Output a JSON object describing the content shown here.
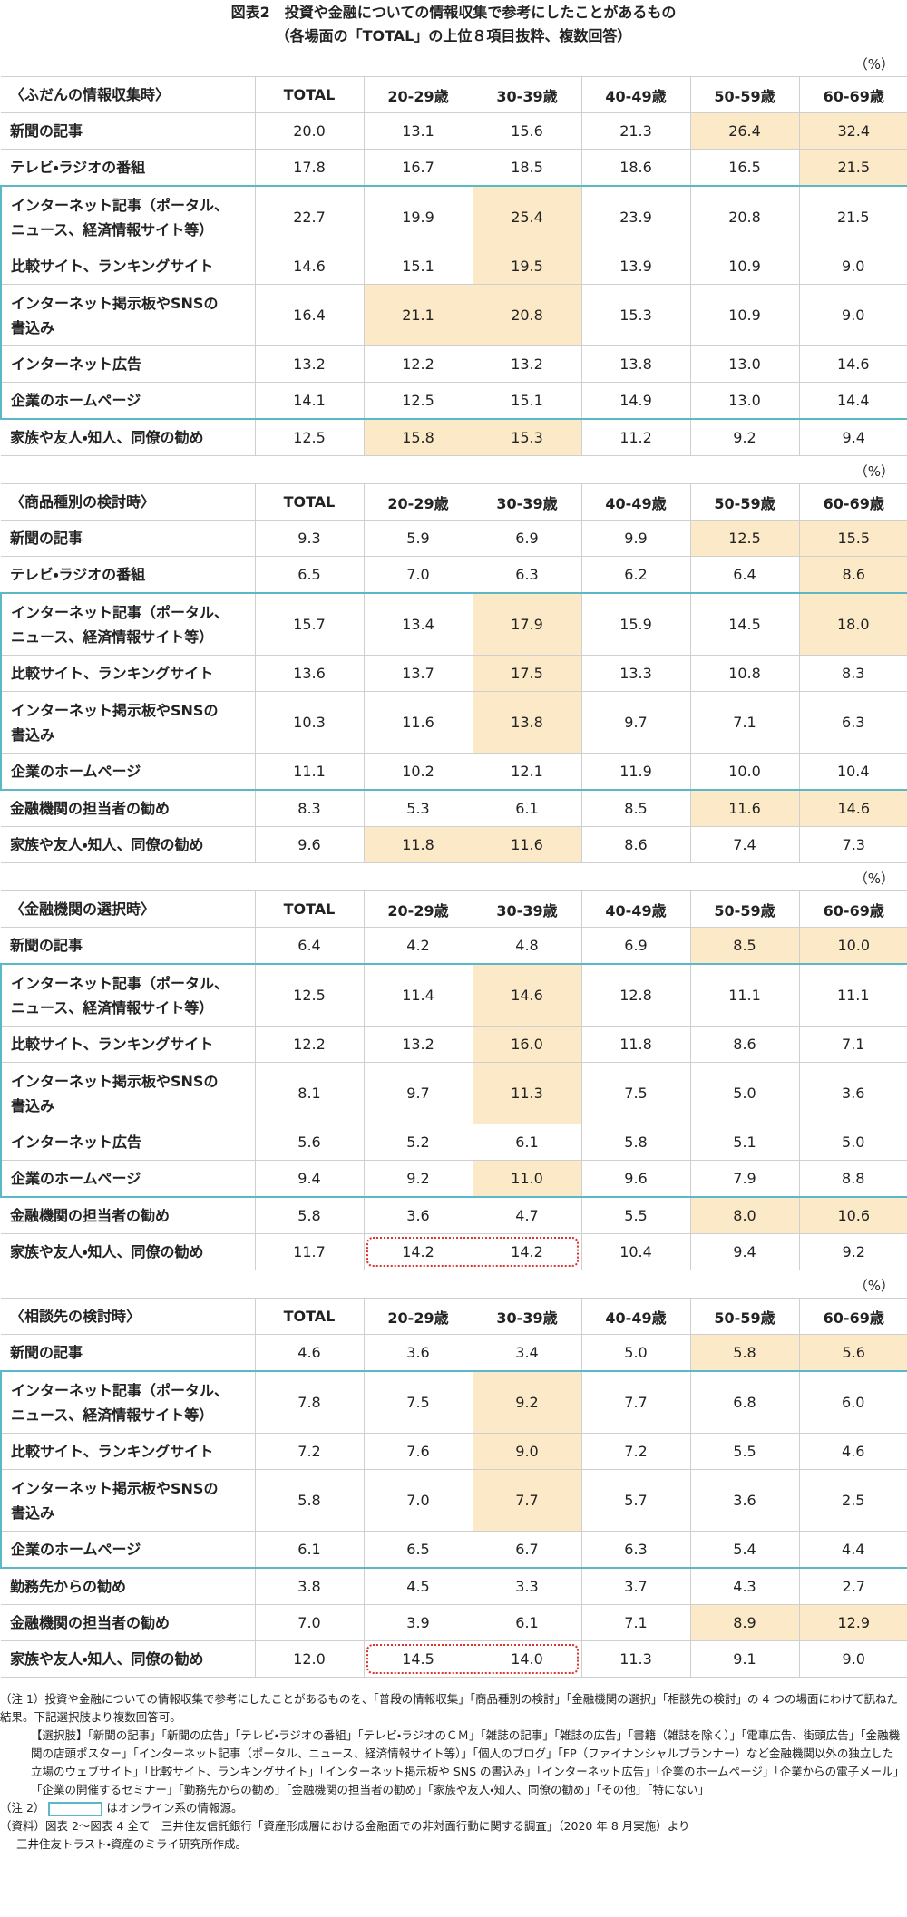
{
  "header": {
    "title": "図表2　投資や金融についての情報収集で参考にしたことがあるもの",
    "subtitle": "（各場面の「TOTAL」の上位８項目抜粋、複数回答）"
  },
  "tables": [
    {
      "unit": "（%）",
      "section": "〈ふだんの情報収集時〉",
      "headers": [
        "TOTAL",
        "20-29歳",
        "30-39歳",
        "40-49歳",
        "50-59歳",
        "60-69歳"
      ],
      "online_group": [
        2,
        6
      ],
      "rows": [
        {
          "label": "新聞の記事",
          "values": [
            "20.0",
            "13.1",
            "15.6",
            "21.3",
            "26.4",
            "32.4"
          ],
          "highlight": [
            4,
            5
          ]
        },
        {
          "label": "テレビ・ラジオの番組",
          "values": [
            "17.8",
            "16.7",
            "18.5",
            "18.6",
            "16.5",
            "21.5"
          ],
          "highlight": [
            5
          ]
        },
        {
          "label": "インターネット記事（ポータル、\nニュース、経済情報サイト等）",
          "values": [
            "22.7",
            "19.9",
            "25.4",
            "23.9",
            "20.8",
            "21.5"
          ],
          "highlight": [
            2
          ]
        },
        {
          "label": "比較サイト、ランキングサイト",
          "values": [
            "14.6",
            "15.1",
            "19.5",
            "13.9",
            "10.9",
            "9.0"
          ],
          "highlight": [
            2
          ]
        },
        {
          "label": "インターネット掲示板やSNSの\n書込み",
          "values": [
            "16.4",
            "21.1",
            "20.8",
            "15.3",
            "10.9",
            "9.0"
          ],
          "highlight": [
            1,
            2
          ]
        },
        {
          "label": "インターネット広告",
          "values": [
            "13.2",
            "12.2",
            "13.2",
            "13.8",
            "13.0",
            "14.6"
          ],
          "highlight": []
        },
        {
          "label": "企業のホームページ",
          "values": [
            "14.1",
            "12.5",
            "15.1",
            "14.9",
            "13.0",
            "14.4"
          ],
          "highlight": []
        },
        {
          "label": "家族や友人・知人、同僚の勧め",
          "values": [
            "12.5",
            "15.8",
            "15.3",
            "11.2",
            "9.2",
            "9.4"
          ],
          "highlight": [
            1,
            2
          ]
        }
      ]
    },
    {
      "unit": "（%）",
      "section": "〈商品種別の検討時〉",
      "headers": [
        "TOTAL",
        "20-29歳",
        "30-39歳",
        "40-49歳",
        "50-59歳",
        "60-69歳"
      ],
      "online_group": [
        2,
        5
      ],
      "rows": [
        {
          "label": "新聞の記事",
          "values": [
            "9.3",
            "5.9",
            "6.9",
            "9.9",
            "12.5",
            "15.5"
          ],
          "highlight": [
            4,
            5
          ]
        },
        {
          "label": "テレビ・ラジオの番組",
          "values": [
            "6.5",
            "7.0",
            "6.3",
            "6.2",
            "6.4",
            "8.6"
          ],
          "highlight": [
            5
          ]
        },
        {
          "label": "インターネット記事（ポータル、\nニュース、経済情報サイト等）",
          "values": [
            "15.7",
            "13.4",
            "17.9",
            "15.9",
            "14.5",
            "18.0"
          ],
          "highlight": [
            2,
            5
          ]
        },
        {
          "label": "比較サイト、ランキングサイト",
          "values": [
            "13.6",
            "13.7",
            "17.5",
            "13.3",
            "10.8",
            "8.3"
          ],
          "highlight": [
            2
          ]
        },
        {
          "label": "インターネット掲示板やSNSの\n書込み",
          "values": [
            "10.3",
            "11.6",
            "13.8",
            "9.7",
            "7.1",
            "6.3"
          ],
          "highlight": [
            2
          ]
        },
        {
          "label": "企業のホームページ",
          "values": [
            "11.1",
            "10.2",
            "12.1",
            "11.9",
            "10.0",
            "10.4"
          ],
          "highlight": []
        },
        {
          "label": "金融機関の担当者の勧め",
          "values": [
            "8.3",
            "5.3",
            "6.1",
            "8.5",
            "11.6",
            "14.6"
          ],
          "highlight": [
            4,
            5
          ]
        },
        {
          "label": "家族や友人・知人、同僚の勧め",
          "values": [
            "9.6",
            "11.8",
            "11.6",
            "8.6",
            "7.4",
            "7.3"
          ],
          "highlight": [
            1,
            2
          ]
        }
      ]
    },
    {
      "unit": "（%）",
      "section": "〈金融機関の選択時〉",
      "headers": [
        "TOTAL",
        "20-29歳",
        "30-39歳",
        "40-49歳",
        "50-59歳",
        "60-69歳"
      ],
      "online_group": [
        1,
        5
      ],
      "rows": [
        {
          "label": "新聞の記事",
          "values": [
            "6.4",
            "4.2",
            "4.8",
            "6.9",
            "8.5",
            "10.0"
          ],
          "highlight": [
            4,
            5
          ]
        },
        {
          "label": "インターネット記事（ポータル、\nニュース、経済情報サイト等）",
          "values": [
            "12.5",
            "11.4",
            "14.6",
            "12.8",
            "11.1",
            "11.1"
          ],
          "highlight": [
            2
          ]
        },
        {
          "label": "比較サイト、ランキングサイト",
          "values": [
            "12.2",
            "13.2",
            "16.0",
            "11.8",
            "8.6",
            "7.1"
          ],
          "highlight": [
            2
          ]
        },
        {
          "label": "インターネット掲示板やSNSの\n書込み",
          "values": [
            "8.1",
            "9.7",
            "11.3",
            "7.5",
            "5.0",
            "3.6"
          ],
          "highlight": [
            2
          ]
        },
        {
          "label": "インターネット広告",
          "values": [
            "5.6",
            "5.2",
            "6.1",
            "5.8",
            "5.1",
            "5.0"
          ],
          "highlight": []
        },
        {
          "label": "企業のホームページ",
          "values": [
            "9.4",
            "9.2",
            "11.0",
            "9.6",
            "7.9",
            "8.8"
          ],
          "highlight": [
            2
          ]
        },
        {
          "label": "金融機関の担当者の勧め",
          "values": [
            "5.8",
            "3.6",
            "4.7",
            "5.5",
            "8.0",
            "10.6"
          ],
          "highlight": [
            4,
            5
          ]
        },
        {
          "label": "家族や友人・知人、同僚の勧め",
          "values": [
            "11.7",
            "14.2",
            "14.2",
            "10.4",
            "9.4",
            "9.2"
          ],
          "highlight": [],
          "dashed": [
            1,
            2
          ]
        }
      ]
    },
    {
      "unit": "（%）",
      "section": "〈相談先の検討時〉",
      "headers": [
        "TOTAL",
        "20-29歳",
        "30-39歳",
        "40-49歳",
        "50-59歳",
        "60-69歳"
      ],
      "online_group": [
        1,
        4
      ],
      "rows": [
        {
          "label": "新聞の記事",
          "values": [
            "4.6",
            "3.6",
            "3.4",
            "5.0",
            "5.8",
            "5.6"
          ],
          "highlight": [
            4,
            5
          ]
        },
        {
          "label": "インターネット記事（ポータル、\nニュース、経済情報サイト等）",
          "values": [
            "7.8",
            "7.5",
            "9.2",
            "7.7",
            "6.8",
            "6.0"
          ],
          "highlight": [
            2
          ]
        },
        {
          "label": "比較サイト、ランキングサイト",
          "values": [
            "7.2",
            "7.6",
            "9.0",
            "7.2",
            "5.5",
            "4.6"
          ],
          "highlight": [
            2
          ]
        },
        {
          "label": "インターネット掲示板やSNSの\n書込み",
          "values": [
            "5.8",
            "7.0",
            "7.7",
            "5.7",
            "3.6",
            "2.5"
          ],
          "highlight": [
            2
          ]
        },
        {
          "label": "企業のホームページ",
          "values": [
            "6.1",
            "6.5",
            "6.7",
            "6.3",
            "5.4",
            "4.4"
          ],
          "highlight": []
        },
        {
          "label": "勤務先からの勧め",
          "values": [
            "3.8",
            "4.5",
            "3.3",
            "3.7",
            "4.3",
            "2.7"
          ],
          "highlight": []
        },
        {
          "label": "金融機関の担当者の勧め",
          "values": [
            "7.0",
            "3.9",
            "6.1",
            "7.1",
            "8.9",
            "12.9"
          ],
          "highlight": [
            4,
            5
          ]
        },
        {
          "label": "家族や友人・知人、同僚の勧め",
          "values": [
            "12.0",
            "14.5",
            "14.0",
            "11.3",
            "9.1",
            "9.0"
          ],
          "highlight": [],
          "dashed": [
            1,
            2
          ]
        }
      ]
    }
  ],
  "notes": {
    "note1": "（注 1）投資や金融についての情報収集で参考にしたことがあるものを、「普段の情報収集」「商品種別の検討」「金融機関の選択」「相談先の検討」の 4 つの場面にわけて訊ねた結果。下記選択肢より複数回答可。",
    "choices": "【選択肢】「新聞の記事」「新聞の広告」「テレビ・ラジオの番組」「テレビ・ラジオのＣＭ」「雑誌の記事」「雑誌の広告」「書籍（雑誌を除く）」「電車広告、街頭広告」「金融機関の店頭ポスター」「インターネット記事（ポータル、ニュース、経済情報サイト等）」「個人のブログ」「FP（ファイナンシャルプランナー）など金融機関以外の独立した立場のウェブサイト」「比較サイト、ランキングサイト」「インターネット掲示板や SNS の書込み」「インターネット広告」「企業のホームページ」「企業からの電子メール」「企業の開催するセミナー」「勤務先からの勧め」「金融機関の担当者の勧め」「家族や友人・知人、同僚の勧め」「その他」「特にない」",
    "note2_label": "（注 2）",
    "note2_text": "はオンライン系の情報源。",
    "source1": "（資料）図表 2～図表 4 全て　三井住友信託銀行「資産形成層における金融面での非対面行動に関する調査」（2020 年 8 月実施）より",
    "source2": "三井住友トラスト・資産のミライ研究所作成。"
  }
}
